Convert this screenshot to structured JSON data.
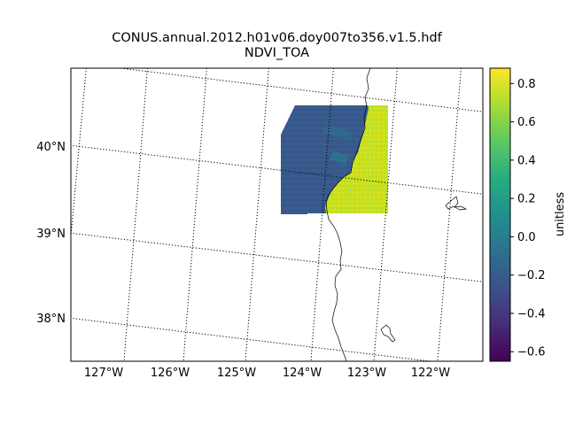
{
  "chart_data": {
    "type": "heatmap",
    "title": "CONUS.annual.2012.h01v06.doy007to356.v1.5.hdf",
    "subtitle": "NDVI_TOA",
    "colorbar_label": "unitless",
    "colorbar_range": [
      -0.65,
      0.88
    ],
    "colorbar_ticks": [
      "0.8",
      "0.6",
      "0.4",
      "0.2",
      "0.0",
      "−0.2",
      "−0.4",
      "−0.6"
    ],
    "colorbar_tick_values": [
      0.8,
      0.6,
      0.4,
      0.2,
      0.0,
      -0.2,
      -0.4,
      -0.6
    ],
    "colormap": "viridis",
    "lon_ticks": [
      "127°W",
      "126°W",
      "125°W",
      "124°W",
      "123°W",
      "122°W"
    ],
    "lat_ticks": [
      "40°N",
      "39°N",
      "38°N"
    ],
    "grid": "dotted graticule",
    "land_ndvi_typical": 0.7,
    "ocean_ndvi_typical": -0.15
  }
}
